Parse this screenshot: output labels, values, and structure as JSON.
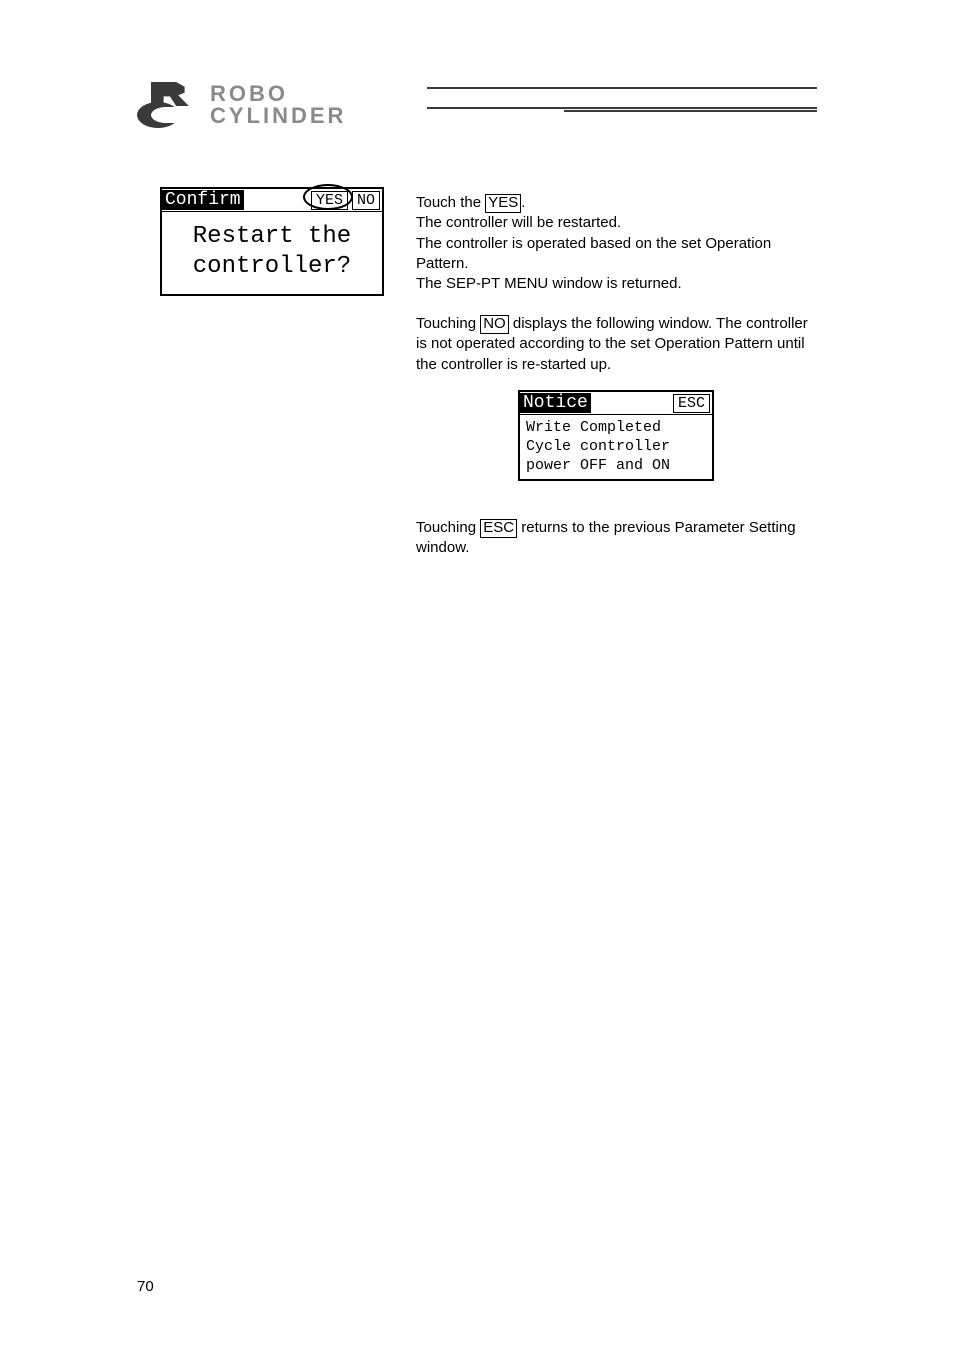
{
  "header": {
    "brand_line1": "ROBO",
    "brand_line2": "CYLINDER"
  },
  "confirm_window": {
    "title": "Confirm",
    "yes_label": "YES",
    "no_label": "NO",
    "body_line1": "Restart the",
    "body_line2": "controller?"
  },
  "notice_window": {
    "title": "Notice",
    "esc_label": "ESC",
    "body_line1": "Write Completed",
    "body_line2": "Cycle controller",
    "body_line3": "power OFF and ON"
  },
  "instructions": {
    "touch_the": "Touch the ",
    "yes_box": "YES",
    "period": ".",
    "line1b": "The controller will be restarted.",
    "line1c": "The controller is operated based on the set Operation Pattern.",
    "line1d": "The SEP-PT MENU window is returned.",
    "touching": "Touching ",
    "no_box": "NO",
    "line2b": " displays the following window. The controller is not operated according to the set Operation Pattern until the controller is re-started up.",
    "esc_box": "ESC",
    "line3b": " returns to the previous Parameter Setting window."
  },
  "page_number": "70",
  "colors": {
    "text": "#000000",
    "logo_gray": "#8a8a8a",
    "logo_dark": "#3a3a3a",
    "background": "#ffffff"
  }
}
